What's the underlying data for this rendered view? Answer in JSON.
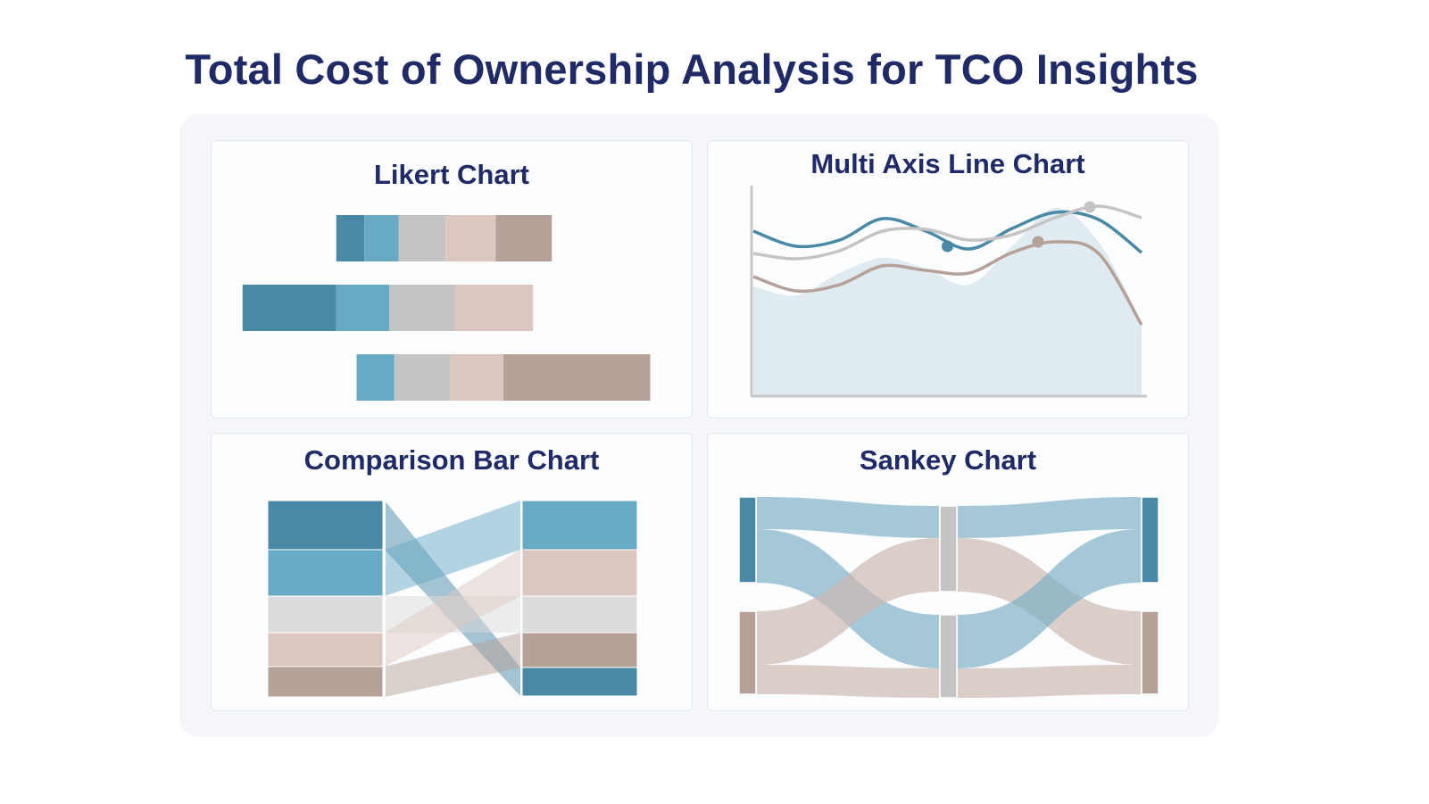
{
  "title": "Total Cost of Ownership Analysis for TCO Insights",
  "colors": {
    "dark_blue": "#4a89a6",
    "blue": "#68a9c4",
    "gray": "#c4c4c4",
    "pink": "#dbc7c0",
    "brown": "#b5a197",
    "title": "#1f2a66",
    "area": "#dfebf1",
    "axis": "#c8c8c8"
  },
  "chart_data": [
    {
      "type": "bar",
      "subtype": "likert-diverging-stacked",
      "title": "Likert Chart",
      "segment_colors": [
        "#4a89a6",
        "#68a9c4",
        "#c4c4c4",
        "#dbc7c0",
        "#b5a197"
      ],
      "rows": [
        {
          "values": [
            9,
            11,
            15,
            16,
            18
          ]
        },
        {
          "values": [
            30,
            17,
            21,
            25,
            0
          ]
        },
        {
          "values": [
            0,
            12,
            18,
            17,
            47
          ]
        }
      ]
    },
    {
      "type": "line",
      "title": "Multi Axis Line Chart",
      "x": [
        0,
        1,
        2,
        3,
        4,
        5,
        6,
        7,
        8,
        9
      ],
      "ylim": [
        0,
        115
      ],
      "area": {
        "color": "#dfebf1",
        "values": [
          61.5,
          56.5,
          69,
          77.5,
          71.5,
          62.5,
          84,
          105.5,
          86.5,
          41.5
        ]
      },
      "series": [
        {
          "color": "#4a89a6",
          "values": [
            92.5,
            84,
            87.5,
            99.5,
            92.5,
            82.5,
            94,
            103,
            99,
            80.5
          ],
          "marker": {
            "x": 4.5,
            "y": 84
          }
        },
        {
          "color": "#c4c4c4",
          "values": [
            80,
            77,
            81.5,
            92.5,
            93.5,
            87.5,
            90.5,
            100,
            106.5,
            100
          ],
          "marker": {
            "x": 7.8,
            "y": 106
          }
        },
        {
          "color": "#b5a197",
          "values": [
            67,
            59,
            62.5,
            73,
            70.5,
            69,
            80.5,
            86.5,
            80,
            40
          ],
          "marker": {
            "x": 6.6,
            "y": 86.5
          }
        }
      ],
      "grid": false
    },
    {
      "type": "bar",
      "subtype": "comparison-stacked-slope",
      "title": "Comparison Bar Chart",
      "categories": [
        {
          "color": "#4a89a6",
          "before": 55,
          "after": 32
        },
        {
          "color": "#68a9c4",
          "before": 52,
          "after": 55
        },
        {
          "color": "#dcdcdc",
          "before": 41,
          "after": 41
        },
        {
          "color": "#dbc7c0",
          "before": 38,
          "after": 52
        },
        {
          "color": "#b5a197",
          "before": 34,
          "after": 39
        }
      ],
      "after_order": [
        1,
        3,
        2,
        4,
        0
      ]
    },
    {
      "type": "sankey",
      "title": "Sankey Chart",
      "nodes": [
        {
          "column": 0,
          "color": "#4a89a6"
        },
        {
          "column": 0,
          "color": "#b5a197"
        },
        {
          "column": 1,
          "color": "#c4c4c4"
        },
        {
          "column": 1,
          "color": "#c4c4c4"
        },
        {
          "column": 2,
          "color": "#4a89a6"
        },
        {
          "column": 2,
          "color": "#b5a197"
        }
      ],
      "links": [
        {
          "source": 0,
          "target": 2,
          "value": 12,
          "color": "#7fb0c6"
        },
        {
          "source": 0,
          "target": 3,
          "value": 20,
          "color": "#7fb0c6"
        },
        {
          "source": 1,
          "target": 2,
          "value": 20,
          "color": "#cdb8b1"
        },
        {
          "source": 1,
          "target": 3,
          "value": 11,
          "color": "#cdb8b1"
        },
        {
          "source": 2,
          "target": 4,
          "value": 12,
          "color": "#7fb0c6"
        },
        {
          "source": 2,
          "target": 5,
          "value": 20,
          "color": "#cdb8b1"
        },
        {
          "source": 3,
          "target": 4,
          "value": 20,
          "color": "#7fb0c6"
        },
        {
          "source": 3,
          "target": 5,
          "value": 11,
          "color": "#cdb8b1"
        }
      ]
    }
  ]
}
